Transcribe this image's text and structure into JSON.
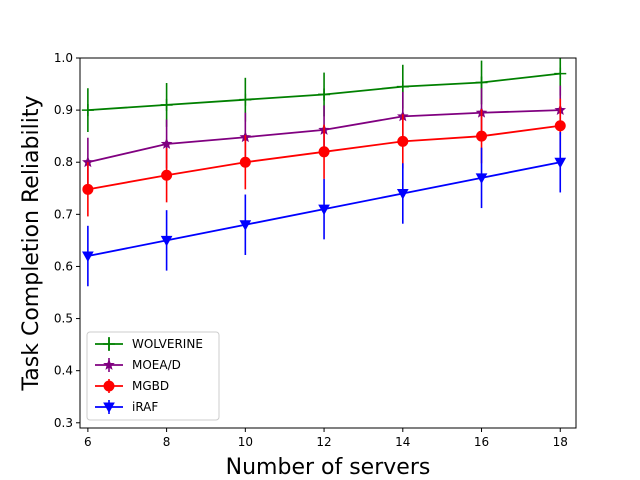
{
  "chart_data": {
    "type": "line",
    "title": "",
    "xlabel": "Number of servers",
    "ylabel": "Task Completion Reliability",
    "x": [
      6,
      8,
      10,
      12,
      14,
      16,
      18
    ],
    "xlim": [
      5.8,
      18.4
    ],
    "ylim": [
      0.29,
      1.0
    ],
    "xticks": [
      6,
      8,
      10,
      12,
      14,
      16,
      18
    ],
    "yticks": [
      0.3,
      0.4,
      0.5,
      0.6,
      0.7,
      0.8,
      0.9,
      1.0
    ],
    "grid": false,
    "legend_position": "lower-left",
    "series": [
      {
        "name": "WOLVERINE",
        "color": "#008000",
        "marker": "plus",
        "values": [
          0.9,
          0.91,
          0.92,
          0.93,
          0.945,
          0.953,
          0.97
        ],
        "errors": [
          0.042,
          0.042,
          0.042,
          0.042,
          0.042,
          0.042,
          0.042
        ]
      },
      {
        "name": "MOEA/D",
        "color": "#800080",
        "marker": "star",
        "values": [
          0.8,
          0.835,
          0.848,
          0.862,
          0.888,
          0.895,
          0.9
        ],
        "errors": [
          0.047,
          0.047,
          0.047,
          0.047,
          0.047,
          0.047,
          0.047
        ]
      },
      {
        "name": "MGBD",
        "color": "#ff0000",
        "marker": "circle",
        "values": [
          0.748,
          0.775,
          0.8,
          0.82,
          0.84,
          0.85,
          0.87
        ],
        "errors": [
          0.052,
          0.052,
          0.052,
          0.052,
          0.052,
          0.052,
          0.052
        ]
      },
      {
        "name": "iRAF",
        "color": "#0000ff",
        "marker": "triangle-down",
        "values": [
          0.62,
          0.65,
          0.68,
          0.71,
          0.74,
          0.77,
          0.8
        ],
        "errors": [
          0.058,
          0.058,
          0.058,
          0.058,
          0.058,
          0.058,
          0.058
        ]
      }
    ]
  }
}
